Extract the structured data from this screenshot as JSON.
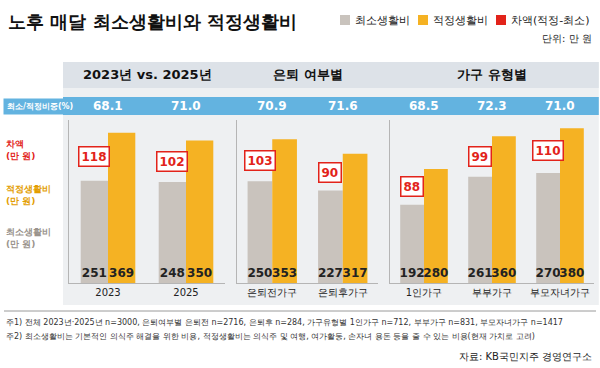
{
  "title": "노후 매달 최소생활비와 적정생활비",
  "unit": "단위: 만 원",
  "ratio_label": "최소/적정비중(%)",
  "row_labels": [
    {
      "lines": [
        "차액",
        "(만 원)"
      ],
      "color": "#e2231a"
    },
    {
      "lines": [
        "적정생활비",
        "(만 원)"
      ],
      "color": "#e39d00"
    },
    {
      "lines": [
        "최소생활비",
        "(만 원)"
      ],
      "color": "#9a938c"
    }
  ],
  "notes": [
    "주1) 전체 2023년·2025년 n=3000, 은퇴여부별 은퇴전 n=2716, 은퇴후 n=284, 가구유형별 1인가구 n=712, 부부가구 n=831, 부모자녀가구 n=1417",
    "주2) 최소생활비는 기본적인 의식주 해결을 위한 비용, 적정생활비는 의식주 및 여행, 여가활동, 손자녀 용돈 등을 줄 수 있는 비용(현재 가치로 고려)"
  ],
  "source": "자료: KB국민지주 경영연구소",
  "chart_data": [
    {
      "type": "bar",
      "title": "2023년 vs. 2025년",
      "categories": [
        "2023",
        "2025"
      ],
      "series": [
        {
          "name": "최소생활비",
          "color": "#c9c3bd",
          "values": [
            251,
            248
          ]
        },
        {
          "name": "적정생활비",
          "color": "#f5b223",
          "values": [
            369,
            350
          ]
        }
      ],
      "differences": {
        "name": "차액(적정-최소)",
        "color": "#e2231a",
        "values": [
          118,
          102
        ]
      },
      "ratios": {
        "values": [
          68.1,
          71.0
        ],
        "value_labels": [
          "68.1",
          "71.0"
        ]
      },
      "ylim": [
        0,
        400
      ],
      "yticks": [],
      "tick_labels": "x",
      "data_labels": true,
      "grid": false
    },
    {
      "type": "bar",
      "title": "은퇴 여부별",
      "categories": [
        "은퇴전가구",
        "은퇴후가구"
      ],
      "series": [
        {
          "name": "최소생활비",
          "color": "#c9c3bd",
          "values": [
            250,
            227
          ]
        },
        {
          "name": "적정생활비",
          "color": "#f5b223",
          "values": [
            353,
            317
          ]
        }
      ],
      "differences": {
        "name": "차액(적정-최소)",
        "color": "#e2231a",
        "values": [
          103,
          90
        ]
      },
      "ratios": {
        "values": [
          70.9,
          71.6
        ],
        "value_labels": [
          "70.9",
          "71.6"
        ]
      },
      "ylim": [
        0,
        400
      ],
      "yticks": [],
      "tick_labels": "x",
      "data_labels": true,
      "grid": false
    },
    {
      "type": "bar",
      "title": "가구 유형별",
      "categories": [
        "1인가구",
        "부부가구",
        "부모자녀가구"
      ],
      "series": [
        {
          "name": "최소생활비",
          "color": "#c9c3bd",
          "values": [
            192,
            261,
            270
          ]
        },
        {
          "name": "적정생활비",
          "color": "#f5b223",
          "values": [
            280,
            360,
            380
          ]
        }
      ],
      "differences": {
        "name": "차액(적정-최소)",
        "color": "#e2231a",
        "values": [
          88,
          99,
          110
        ]
      },
      "ratios": {
        "values": [
          68.5,
          72.3,
          71.0
        ],
        "value_labels": [
          "68.5",
          "72.3",
          "71.0"
        ]
      },
      "ylim": [
        0,
        400
      ],
      "yticks": [],
      "tick_labels": "x",
      "data_labels": true,
      "grid": false
    }
  ]
}
